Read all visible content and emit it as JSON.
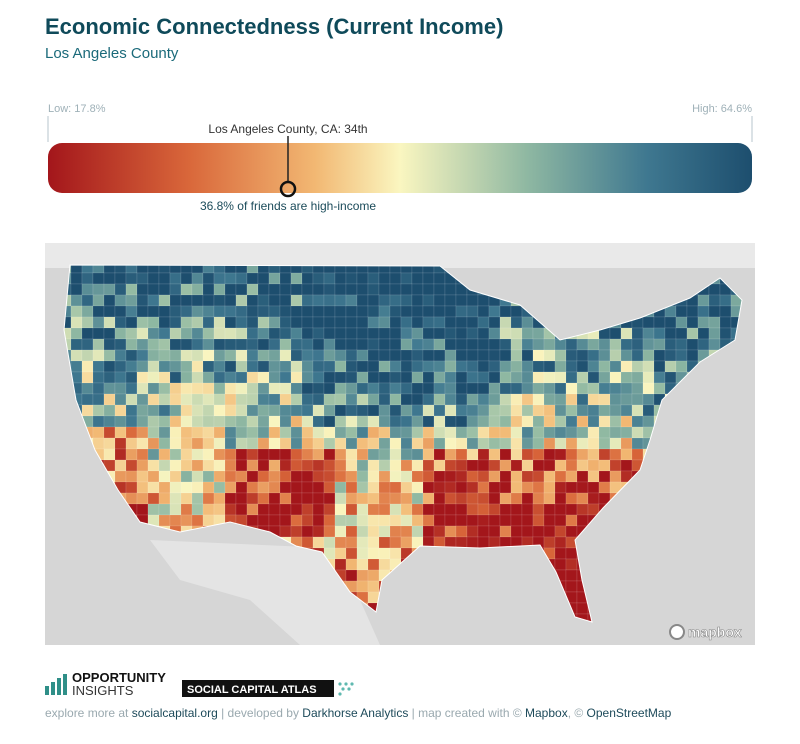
{
  "header": {
    "title": "Economic Connectedness (Current Income)",
    "subtitle": "Los Angeles County"
  },
  "legend": {
    "low_label": "Low: 17.8%",
    "high_label": "High: 64.6%",
    "marker_label": "Los Angeles County, CA: 34th",
    "marker_text": "36.8% of friends are high-income"
  },
  "map": {
    "attribution_logo": "mapbox"
  },
  "footer": {
    "logo_top": "OPPORTUNITY",
    "logo_bottom": "INSIGHTS",
    "atlas": "SOCIAL CAPITAL ATLAS",
    "credits": [
      "explore more at ",
      "socialcapital.org",
      " | developed by ",
      "Darkhorse Analytics",
      " | map created with © ",
      "Mapbox",
      ", © ",
      "OpenStreetMap"
    ]
  }
}
